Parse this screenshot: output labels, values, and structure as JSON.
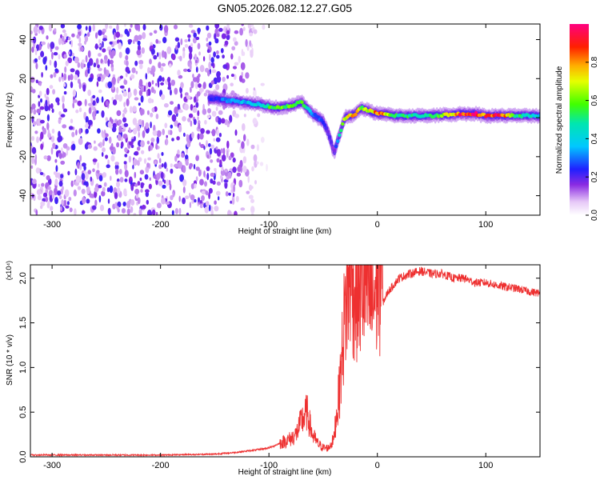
{
  "title": "GN05.2026.082.12.27.G05",
  "chart_data": [
    {
      "type": "heatmap",
      "xlabel": "Height of straight line (km)",
      "ylabel": "Frequency (Hz)",
      "xlim": [
        -320,
        150
      ],
      "ylim": [
        -50,
        48
      ],
      "xticks": [
        -300,
        -200,
        -100,
        0,
        100
      ],
      "yticks": [
        -40,
        -20,
        0,
        20,
        40
      ],
      "colorbar": {
        "label": "Normalized spectral amplitude",
        "range": [
          0,
          1
        ],
        "ticks": [
          0.0,
          0.2,
          0.4,
          0.6,
          0.8
        ],
        "colormap": "white-violet-blue-cyan-green-yellow-red-magenta"
      },
      "ridge": {
        "description_points_x": [
          -155,
          -140,
          -125,
          -110,
          -95,
          -80,
          -70,
          -60,
          -50,
          -45,
          -40,
          -30,
          -20,
          -15,
          -10,
          0,
          20,
          50,
          80,
          90,
          100,
          110,
          130,
          150
        ],
        "frequency": [
          10,
          9,
          8,
          7,
          5,
          6,
          8,
          2,
          -2,
          -8,
          -18,
          0,
          2,
          5,
          4,
          2,
          1,
          1,
          2,
          2,
          1,
          1,
          1,
          1
        ],
        "amplitude": [
          0.2,
          0.3,
          0.35,
          0.4,
          0.55,
          0.6,
          0.55,
          0.3,
          0.25,
          0.2,
          0.15,
          0.7,
          0.75,
          0.6,
          0.65,
          0.85,
          0.5,
          0.5,
          0.9,
          0.95,
          0.85,
          0.95,
          0.5,
          0.4
        ]
      },
      "noise_region_x": [
        -320,
        -140
      ]
    },
    {
      "type": "line",
      "xlabel": "Height of straight line (km)",
      "ylabel": "SNR (10 * v/v)",
      "y_multiplier": "(x10⁴)",
      "xlim": [
        -320,
        150
      ],
      "ylim": [
        0,
        2.15
      ],
      "xticks": [
        -300,
        -200,
        -100,
        0,
        100
      ],
      "yticks": [
        0.0,
        0.5,
        1.0,
        1.5,
        2.0
      ],
      "series": [
        {
          "color": "#ee3030",
          "x": [
            -320,
            -200,
            -150,
            -130,
            -110,
            -100,
            -90,
            -80,
            -75,
            -70,
            -65,
            -60,
            -55,
            -50,
            -45,
            -40,
            -35,
            -30,
            -25,
            -20,
            -15,
            -10,
            -5,
            0,
            10,
            20,
            30,
            40,
            50,
            60,
            70,
            80,
            90,
            100,
            110,
            120,
            130,
            140,
            150
          ],
          "y": [
            0.02,
            0.02,
            0.03,
            0.05,
            0.08,
            0.1,
            0.15,
            0.2,
            0.25,
            0.4,
            0.5,
            0.25,
            0.15,
            0.1,
            0.1,
            0.2,
            0.6,
            1.3,
            1.7,
            1.5,
            1.6,
            1.55,
            1.4,
            1.6,
            1.85,
            2.0,
            2.05,
            2.08,
            2.05,
            2.05,
            2.0,
            2.0,
            1.95,
            1.95,
            1.92,
            1.9,
            1.88,
            1.85,
            1.83
          ]
        }
      ]
    }
  ]
}
